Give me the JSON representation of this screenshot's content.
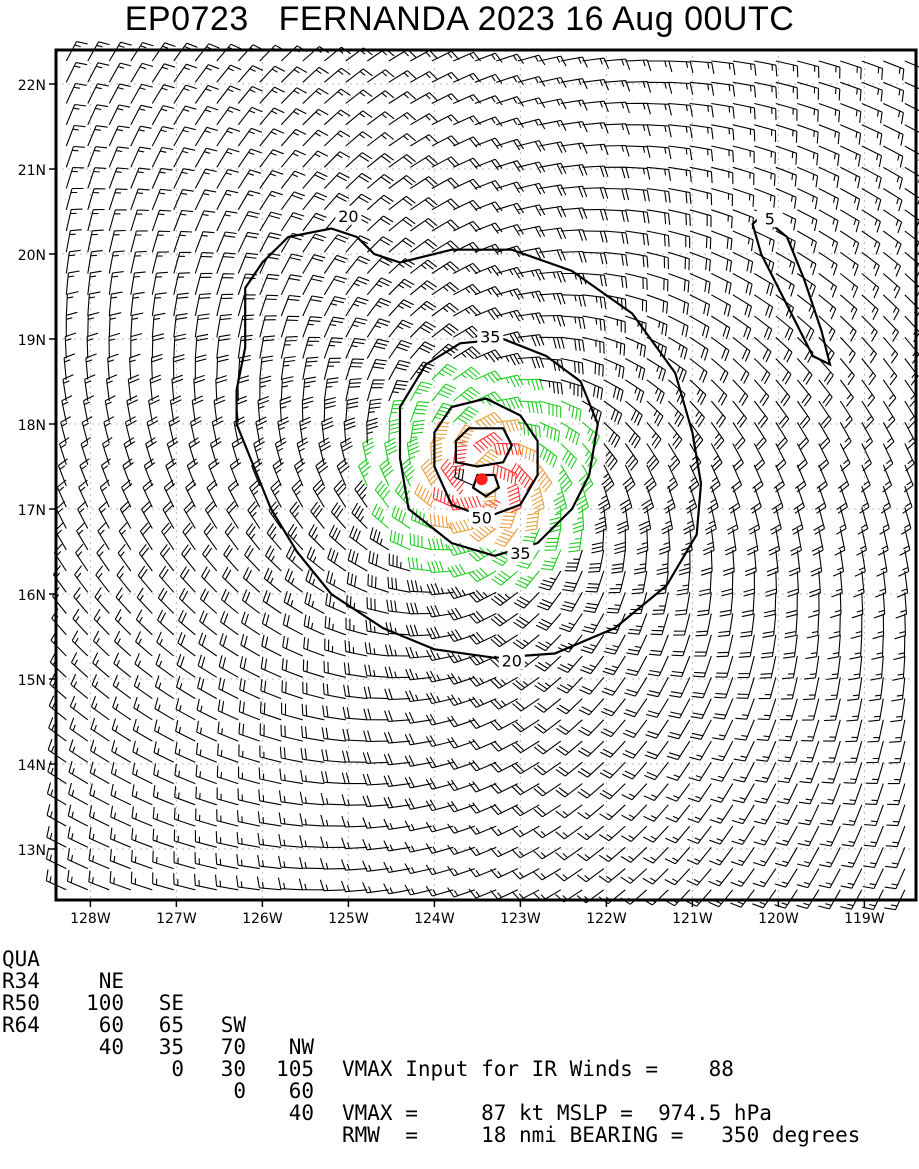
{
  "title": "EP0723   FERNANDA 2023 16 Aug 00UTC",
  "chart_data": {
    "type": "wind-barb-contour",
    "storm": {
      "id": "EP0723",
      "name": "FERNANDA",
      "year": "2023",
      "date": "16 Aug",
      "time": "00UTC"
    },
    "x_range": [
      -128.4,
      -118.4
    ],
    "y_range": [
      12.4,
      22.4
    ],
    "x_tick_values": [
      -128,
      -127,
      -126,
      -125,
      -124,
      -123,
      -122,
      -121,
      -120,
      -119
    ],
    "x_tick_labels": [
      "128W",
      "127W",
      "126W",
      "125W",
      "124W",
      "123W",
      "122W",
      "121W",
      "120W",
      "119W"
    ],
    "y_tick_values": [
      22,
      21,
      20,
      19,
      18,
      17,
      16,
      15,
      14,
      13
    ],
    "y_tick_labels": [
      "22N",
      "21N",
      "20N",
      "19N",
      "18N",
      "17N",
      "16N",
      "15N",
      "14N",
      "13N"
    ],
    "grid": true,
    "center": {
      "lon": -123.45,
      "lat": 17.35
    },
    "contour_labels": [
      "20",
      "35",
      "50",
      "35",
      "20",
      "5"
    ],
    "contours": [
      {
        "level": 20,
        "points": [
          [
            -124.9,
            20.2
          ],
          [
            -125.2,
            20.3
          ],
          [
            -125.7,
            20.2
          ],
          [
            -126.0,
            19.9
          ],
          [
            -126.2,
            19.6
          ],
          [
            -126.2,
            19.2
          ],
          [
            -126.2,
            18.9
          ],
          [
            -126.3,
            18.4
          ],
          [
            -126.3,
            18.0
          ],
          [
            -126.1,
            17.5
          ],
          [
            -125.9,
            17.0
          ],
          [
            -125.6,
            16.5
          ],
          [
            -125.2,
            16.0
          ],
          [
            -124.6,
            15.6
          ],
          [
            -124.0,
            15.35
          ],
          [
            -123.3,
            15.25
          ],
          [
            -122.6,
            15.3
          ],
          [
            -121.9,
            15.6
          ],
          [
            -121.3,
            16.1
          ],
          [
            -120.95,
            16.7
          ],
          [
            -120.9,
            17.3
          ],
          [
            -121.0,
            17.9
          ],
          [
            -121.2,
            18.6
          ],
          [
            -121.7,
            19.3
          ],
          [
            -122.4,
            19.8
          ],
          [
            -123.1,
            20.05
          ],
          [
            -123.8,
            20.05
          ],
          [
            -124.4,
            19.9
          ],
          [
            -124.7,
            20.0
          ],
          [
            -124.9,
            20.2
          ]
        ]
      },
      {
        "level": 35,
        "points": [
          [
            -123.2,
            19.0
          ],
          [
            -122.7,
            18.8
          ],
          [
            -122.3,
            18.5
          ],
          [
            -122.1,
            18.0
          ],
          [
            -122.2,
            17.4
          ],
          [
            -122.4,
            17.0
          ],
          [
            -122.8,
            16.6
          ],
          [
            -123.3,
            16.45
          ],
          [
            -123.8,
            16.6
          ],
          [
            -124.3,
            17.0
          ],
          [
            -124.4,
            17.6
          ],
          [
            -124.4,
            18.2
          ],
          [
            -124.1,
            18.7
          ],
          [
            -123.7,
            18.95
          ],
          [
            -123.2,
            19.0
          ]
        ]
      },
      {
        "level": 50,
        "points": [
          [
            -123.4,
            18.3
          ],
          [
            -123.0,
            18.1
          ],
          [
            -122.8,
            17.8
          ],
          [
            -122.8,
            17.4
          ],
          [
            -123.0,
            17.05
          ],
          [
            -123.4,
            16.9
          ],
          [
            -123.8,
            17.05
          ],
          [
            -124.0,
            17.5
          ],
          [
            -124.0,
            17.9
          ],
          [
            -123.8,
            18.2
          ],
          [
            -123.4,
            18.3
          ]
        ]
      },
      {
        "level": 64,
        "points": [
          [
            -123.6,
            17.95
          ],
          [
            -123.2,
            17.95
          ],
          [
            -123.1,
            17.75
          ],
          [
            -123.2,
            17.55
          ],
          [
            -123.5,
            17.5
          ],
          [
            -123.75,
            17.55
          ],
          [
            -123.75,
            17.8
          ],
          [
            -123.6,
            17.95
          ]
        ]
      },
      {
        "level": 80,
        "points": [
          [
            -123.5,
            17.4
          ],
          [
            -123.3,
            17.4
          ],
          [
            -123.25,
            17.25
          ],
          [
            -123.4,
            17.15
          ],
          [
            -123.55,
            17.25
          ],
          [
            -123.5,
            17.4
          ]
        ]
      },
      {
        "level": 5,
        "points": [
          [
            -120.2,
            20.45
          ],
          [
            -119.9,
            20.2
          ],
          [
            -119.7,
            19.7
          ],
          [
            -119.5,
            19.1
          ],
          [
            -119.4,
            18.7
          ],
          [
            -119.6,
            18.8
          ],
          [
            -119.9,
            19.4
          ],
          [
            -120.2,
            20.0
          ],
          [
            -120.3,
            20.35
          ],
          [
            -120.2,
            20.45
          ]
        ]
      }
    ],
    "barb_colors": {
      "below_35": "#000000",
      "35_to_50": "#22cc22",
      "50_to_64": "#e8a040",
      "64_plus": "#ff3030"
    },
    "table": {
      "header": [
        "QUA",
        "NE",
        "SE",
        "SW",
        "NW"
      ],
      "rows": [
        [
          "R34",
          "100",
          "65",
          "70",
          "105"
        ],
        [
          "R50",
          "60",
          "35",
          "30",
          "60"
        ],
        [
          "R64",
          "40",
          "0",
          "0",
          "40"
        ]
      ]
    },
    "info_lines": [
      "VMAX Input for IR Winds =    88",
      "VMAX =     87 kt MSLP =  974.5 hPa",
      "RMW  =     18 nmi BEARING =   350 degrees"
    ],
    "vmax_input": 88,
    "vmax_kt": 87,
    "mslp_hpa": 974.5,
    "rmw_nmi": 18,
    "bearing_deg": 350
  }
}
